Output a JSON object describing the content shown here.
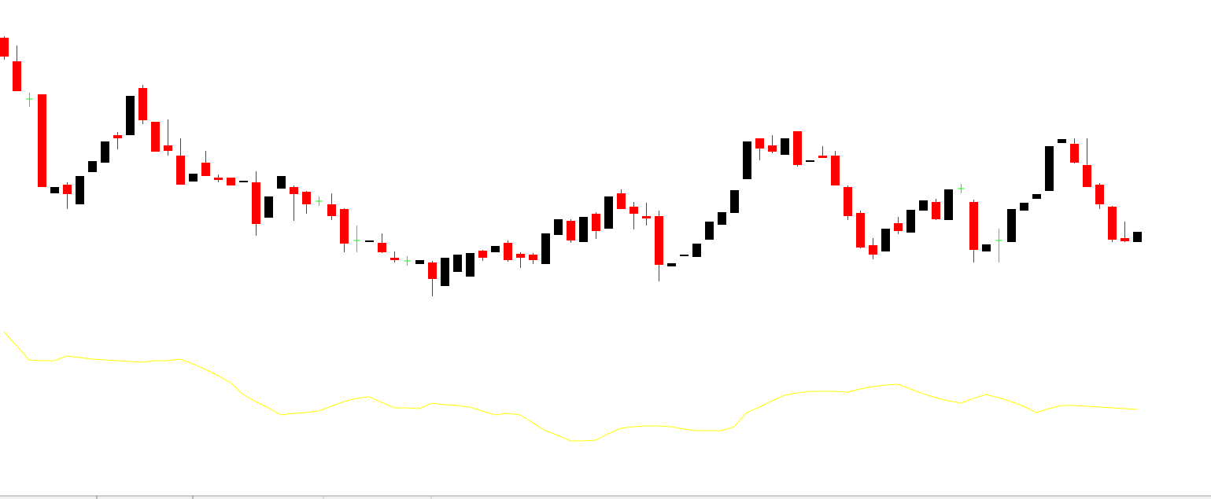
{
  "chart_data": {
    "type": "candlestick",
    "open": [
      587,
      557,
      509,
      515,
      389,
      400,
      375,
      416,
      428,
      463,
      463,
      523,
      480,
      450,
      437,
      404,
      428,
      409,
      409,
      403,
      403,
      358,
      395,
      397,
      391,
      379,
      375,
      369,
      329,
      327,
      326,
      307,
      303,
      299,
      301,
      271,
      289,
      283,
      316,
      314,
      326,
      312,
      311,
      299,
      336,
      354,
      327,
      363,
      344,
      389,
      372,
      360,
      360,
      296,
      309,
      308,
      330,
      349,
      364,
      407,
      459,
      450,
      438,
      468,
      429,
      437,
      437,
      397,
      364,
      323,
      315,
      351,
      339,
      367,
      378,
      355,
      395,
      378,
      315,
      329,
      327,
      367,
      382,
      392,
      453,
      452,
      425,
      400,
      372,
      332,
      327
    ],
    "high": [
      589,
      577,
      517,
      515,
      397,
      403,
      411,
      430,
      455,
      467,
      513,
      527,
      480,
      483,
      459,
      414,
      443,
      413,
      409,
      405,
      417,
      385,
      411,
      399,
      392,
      385,
      389,
      370,
      348,
      329,
      338,
      315,
      309,
      304,
      303,
      307,
      311,
      313,
      317,
      322,
      329,
      314,
      313,
      338,
      356,
      356,
      359,
      365,
      385,
      394,
      378,
      377,
      367,
      300,
      311,
      325,
      353,
      365,
      393,
      455,
      459,
      463,
      459,
      468,
      431,
      449,
      443,
      399,
      367,
      332,
      344,
      359,
      368,
      380,
      382,
      394,
      401,
      381,
      324,
      344,
      369,
      377,
      388,
      449,
      458,
      459,
      459,
      402,
      373,
      353,
      340
    ],
    "low": [
      559,
      519,
      499,
      397,
      389,
      369,
      375,
      416,
      428,
      445,
      463,
      477,
      442,
      437,
      400,
      404,
      411,
      403,
      399,
      403,
      335,
      358,
      395,
      354,
      363,
      373,
      355,
      314,
      314,
      327,
      313,
      301,
      297,
      299,
      258,
      271,
      289,
      283,
      303,
      314,
      302,
      294,
      299,
      299,
      336,
      326,
      327,
      331,
      344,
      369,
      343,
      348,
      277,
      296,
      309,
      308,
      330,
      349,
      364,
      407,
      431,
      440,
      438,
      423,
      429,
      434,
      399,
      355,
      319,
      305,
      315,
      337,
      339,
      367,
      355,
      355,
      389,
      301,
      315,
      301,
      327,
      367,
      382,
      392,
      453,
      427,
      397,
      369,
      327,
      327,
      327
    ],
    "close": [
      563,
      519,
      509,
      397,
      397,
      388,
      411,
      430,
      455,
      459,
      513,
      482,
      442,
      443,
      400,
      414,
      411,
      406,
      399,
      405,
      350,
      385,
      411,
      388,
      375,
      379,
      360,
      325,
      329,
      329,
      314,
      304,
      303,
      304,
      280,
      307,
      311,
      313,
      307,
      322,
      304,
      307,
      304,
      338,
      356,
      329,
      359,
      341,
      385,
      369,
      363,
      357,
      298,
      300,
      311,
      325,
      353,
      365,
      393,
      455,
      446,
      442,
      459,
      425,
      431,
      434,
      399,
      360,
      320,
      311,
      344,
      341,
      368,
      380,
      356,
      394,
      395,
      317,
      324,
      329,
      369,
      377,
      388,
      449,
      458,
      428,
      397,
      375,
      330,
      328,
      340
    ],
    "up_color": "#000000",
    "down_color": "#ff0000",
    "doji_color": "#00ff00",
    "ylim": [
      0,
      635
    ],
    "line": {
      "color": "#ffff00",
      "values": [
        213,
        195,
        177,
        176,
        176,
        182,
        180,
        178,
        177,
        176,
        175,
        174,
        176,
        176,
        178,
        172,
        165,
        157,
        148,
        133,
        124,
        116,
        107,
        109,
        110,
        112,
        118,
        124,
        128,
        130,
        123,
        116,
        116,
        115,
        122,
        120,
        119,
        117,
        112,
        107,
        109,
        107,
        97,
        87,
        81,
        74,
        74,
        75,
        83,
        90,
        92,
        93,
        93,
        92,
        89,
        87,
        87,
        87,
        92,
        110,
        117,
        125,
        132,
        135,
        137,
        137,
        137,
        136,
        140,
        143,
        145,
        146,
        140,
        134,
        129,
        125,
        122,
        128,
        133,
        129,
        124,
        118,
        110,
        115,
        119,
        119,
        118,
        117,
        116,
        115,
        114
      ]
    }
  }
}
